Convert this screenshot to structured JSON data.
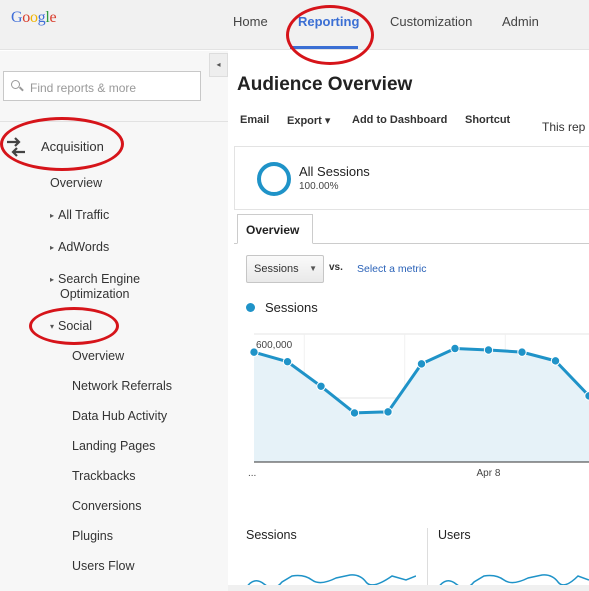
{
  "brand": {
    "logo": "Google"
  },
  "nav": {
    "home": "Home",
    "reporting": "Reporting",
    "customization": "Customization",
    "admin": "Admin"
  },
  "sidebar": {
    "collapse": "◂",
    "search_placeholder": "Find reports & more",
    "acquisition": "Acquisition",
    "items": [
      {
        "label": "Overview",
        "arrow": ""
      },
      {
        "label": "All Traffic",
        "arrow": "▸"
      },
      {
        "label": "AdWords",
        "arrow": "▸"
      },
      {
        "label": "Search Engine",
        "label2": "Optimization",
        "arrow": "▸"
      },
      {
        "label": "Social",
        "arrow": "▾"
      }
    ],
    "social_children": [
      "Overview",
      "Network Referrals",
      "Data Hub Activity",
      "Landing Pages",
      "Trackbacks",
      "Conversions",
      "Plugins",
      "Users Flow"
    ]
  },
  "main": {
    "title": "Audience Overview",
    "toolbar": {
      "email": "Email",
      "export": "Export ▾",
      "add_dashboard": "Add to Dashboard",
      "shortcut": "Shortcut"
    },
    "range_text": "This rep",
    "segment": {
      "name": "All Sessions",
      "percent": "100.00%"
    },
    "tab": "Overview",
    "metric": {
      "selected": "Sessions",
      "vs": "vs.",
      "select_link": "Select a metric"
    },
    "legend": "Sessions",
    "stats": {
      "sessions": "Sessions",
      "users": "Users"
    }
  },
  "colors": {
    "accent": "#1f93c8",
    "area": "#e6f2f8",
    "highlight": "#d6141a",
    "link": "#2a62b8"
  },
  "chart_data": {
    "type": "line",
    "series": [
      {
        "name": "Sessions",
        "values": [
          515000,
          470000,
          355000,
          230000,
          235000,
          460000,
          532000,
          525000,
          515000,
          474000,
          310000
        ]
      }
    ],
    "ylim": [
      0,
      600000
    ],
    "y_ticks": [
      {
        "value": 600000,
        "label": "600,000"
      },
      {
        "value": 300000,
        "label": "300,000"
      }
    ],
    "x_tick": {
      "label": "Apr 8",
      "index": 7
    },
    "x_start_label": "...",
    "grid": true
  }
}
